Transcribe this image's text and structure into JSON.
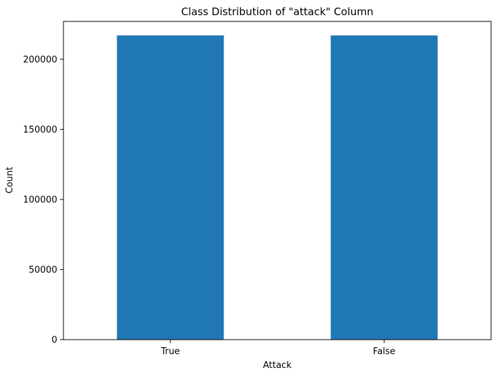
{
  "chart_data": {
    "type": "bar",
    "title": "Class Distribution of \"attack\" Column",
    "xlabel": "Attack",
    "ylabel": "Count",
    "categories": [
      "True",
      "False"
    ],
    "values": [
      217000,
      217000
    ],
    "ylim": [
      0,
      227000
    ],
    "yticks": [
      0,
      50000,
      100000,
      150000,
      200000
    ],
    "ytick_labels": [
      "0",
      "50000",
      "100000",
      "150000",
      "200000"
    ],
    "grid": false,
    "legend": "none",
    "bar_color": "#1f77b4"
  }
}
